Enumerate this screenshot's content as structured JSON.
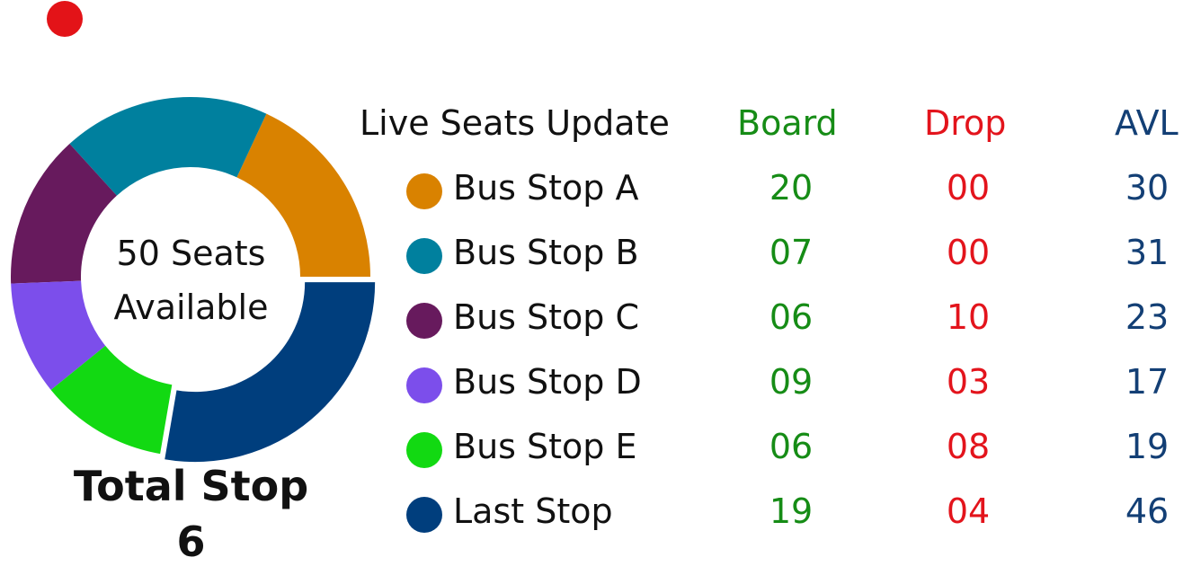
{
  "status": {
    "live_indicator_color": "#e31318"
  },
  "header": {
    "title": "Live Seats Update",
    "board_label": "Board",
    "drop_label": "Drop",
    "avl_label": "AVL"
  },
  "summary": {
    "seats_line1": "50 Seats",
    "seats_line2": "Available",
    "total_stop_label": "Total Stop",
    "total_stop_value": "6"
  },
  "colors": {
    "board": "#168c16",
    "drop": "#e3141c",
    "avl": "#133f75"
  },
  "stops": [
    {
      "name": "Bus Stop A",
      "color": "#d98200",
      "board": "20",
      "drop": "00",
      "avl": "30"
    },
    {
      "name": "Bus Stop B",
      "color": "#00809e",
      "board": "07",
      "drop": "00",
      "avl": "31"
    },
    {
      "name": "Bus Stop C",
      "color": "#671a5d",
      "board": "06",
      "drop": "10",
      "avl": "23"
    },
    {
      "name": "Bus Stop D",
      "color": "#7c4eeb",
      "board": "09",
      "drop": "03",
      "avl": "17"
    },
    {
      "name": "Bus Stop E",
      "color": "#12d912",
      "board": "06",
      "drop": "08",
      "avl": "19"
    },
    {
      "name": "Last Stop",
      "color": "#003e7d",
      "board": "19",
      "drop": "04",
      "avl": "46"
    }
  ],
  "chart_data": {
    "type": "pie",
    "style": "donut",
    "categories": [
      "Bus Stop A",
      "Bus Stop B",
      "Bus Stop C",
      "Bus Stop D",
      "Bus Stop E",
      "Last Stop"
    ],
    "values": [
      30,
      31,
      23,
      17,
      19,
      46
    ],
    "colors": [
      "#d98200",
      "#00809e",
      "#671a5d",
      "#7c4eeb",
      "#12d912",
      "#003e7d"
    ],
    "exploded": [
      "Last Stop"
    ]
  }
}
